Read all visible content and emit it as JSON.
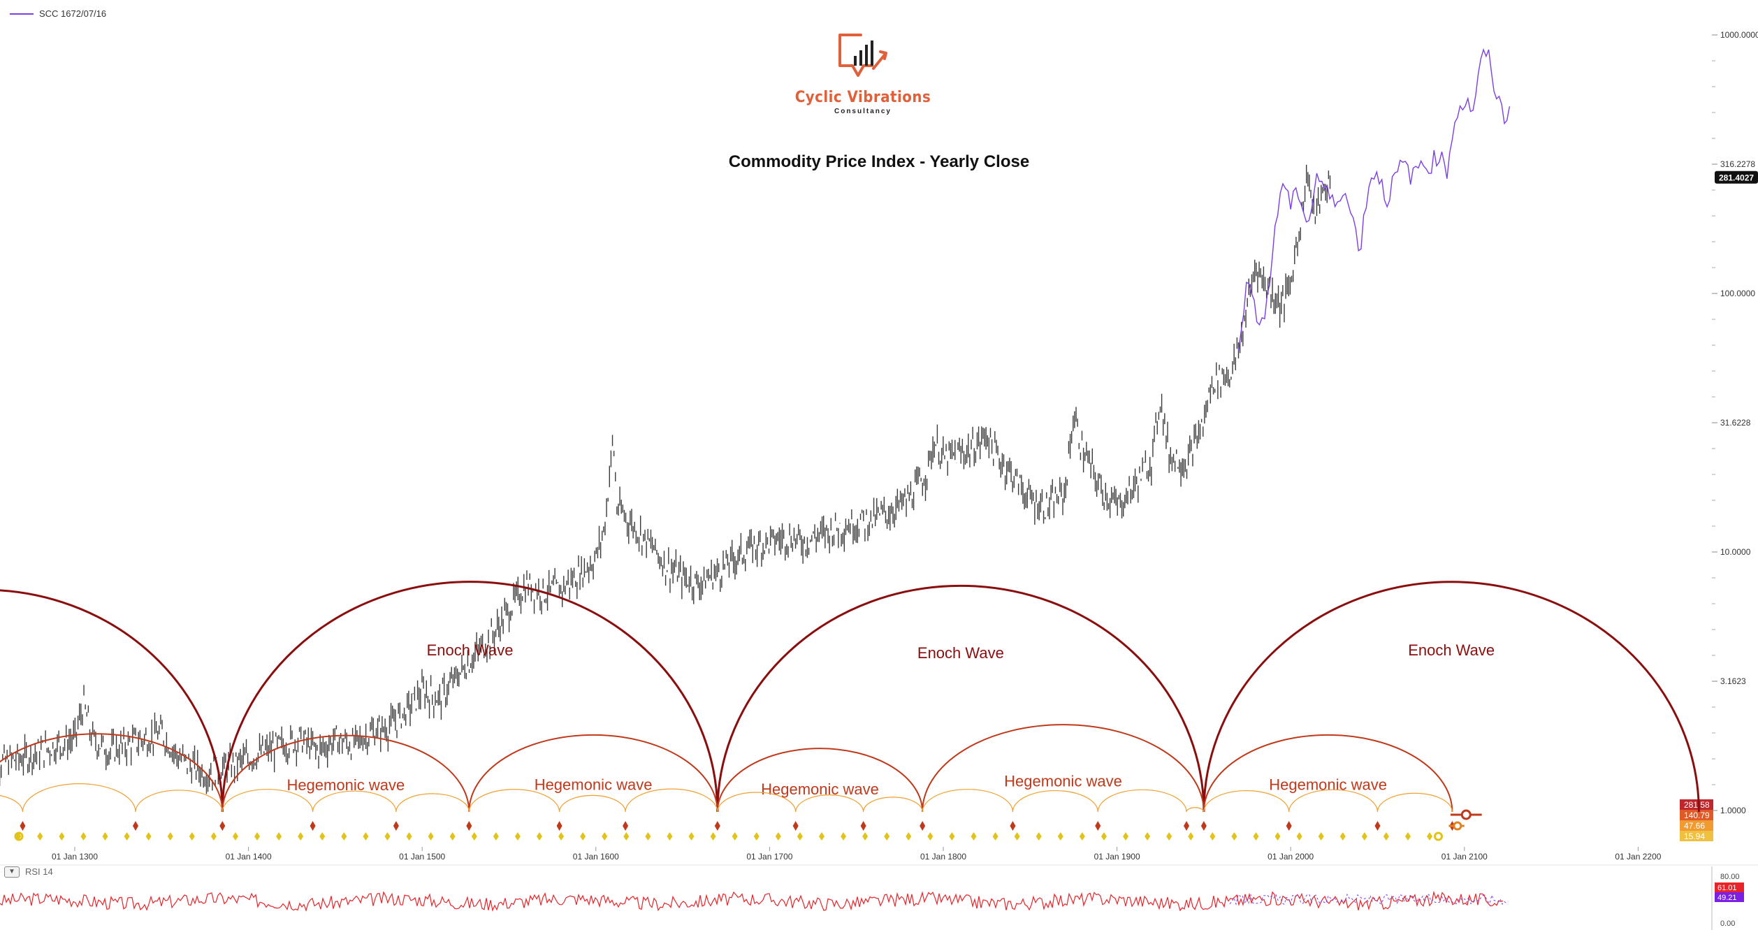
{
  "legend": {
    "symbol": "SCC 1672/07/16",
    "color": "#7b3fe4"
  },
  "logo": {
    "brand": "Cyclic Vibrations",
    "sub": "Consultancy"
  },
  "title": "Commodity Price Index - Yearly Close",
  "rsi": {
    "label": "RSI 14",
    "value_a": "61.01",
    "value_b": "49.21",
    "axis_ticks": [
      "80.00",
      "0.00"
    ]
  },
  "colors": {
    "enoch": "#8b0e0e",
    "hegemonic": "#c0391b",
    "minor": "#f0a030",
    "candles": "#3a3a3a",
    "overlay": "#7b3fe4",
    "rsi": "#e8242a",
    "diamond": "#e2c31a"
  },
  "chart_data": {
    "type": "line",
    "scale": "log",
    "ylim": [
      0.6,
      1000
    ],
    "x_ticks": [
      "01 Jan 1300",
      "01 Jan 1400",
      "01 Jan 1500",
      "01 Jan 1600",
      "01 Jan 1700",
      "01 Jan 1800",
      "01 Jan 1900",
      "01 Jan 2000",
      "01 Jan 2100",
      "01 Jan 2200"
    ],
    "x_tick_years": [
      1300,
      1400,
      1500,
      1600,
      1700,
      1800,
      1900,
      2000,
      2100,
      2200
    ],
    "y_ticks": [
      {
        "label": "1000.0000",
        "value": 1000
      },
      {
        "label": "316.2278",
        "value": 316.2278
      },
      {
        "label": "100.0000",
        "value": 100
      },
      {
        "label": "31.6228",
        "value": 31.6228
      },
      {
        "label": "10.0000",
        "value": 10
      },
      {
        "label": "3.1623",
        "value": 3.1623
      },
      {
        "label": "1.0000",
        "value": 1
      }
    ],
    "last_price": {
      "label": "281.4027",
      "value": 281.4027
    },
    "price_tags": [
      {
        "label": "281.58",
        "color": "#c0272d"
      },
      {
        "label": "140.79",
        "color": "#e05a28"
      },
      {
        "label": "47.66",
        "color": "#f09a30"
      },
      {
        "label": "15.94",
        "color": "#f0c040"
      }
    ],
    "series": [
      {
        "name": "",
        "points": [
          [
            1250,
            1.5
          ],
          [
            1270,
            1.6
          ],
          [
            1290,
            1.8
          ],
          [
            1300,
            1.9
          ],
          [
            1305,
            2.6
          ],
          [
            1310,
            1.9
          ],
          [
            1320,
            1.7
          ],
          [
            1330,
            1.8
          ],
          [
            1340,
            1.9
          ],
          [
            1350,
            2.0
          ],
          [
            1360,
            1.6
          ],
          [
            1375,
            1.4
          ],
          [
            1390,
            1.5
          ],
          [
            1400,
            1.6
          ],
          [
            1410,
            1.7
          ],
          [
            1420,
            1.8
          ],
          [
            1430,
            1.9
          ],
          [
            1440,
            1.7
          ],
          [
            1450,
            1.9
          ],
          [
            1460,
            1.8
          ],
          [
            1470,
            2.0
          ],
          [
            1480,
            2.1
          ],
          [
            1490,
            2.4
          ],
          [
            1500,
            2.9
          ],
          [
            1510,
            2.7
          ],
          [
            1520,
            3.3
          ],
          [
            1530,
            4.0
          ],
          [
            1540,
            4.7
          ],
          [
            1550,
            6.0
          ],
          [
            1560,
            7.5
          ],
          [
            1570,
            7.0
          ],
          [
            1580,
            7.2
          ],
          [
            1590,
            8.2
          ],
          [
            1600,
            9.5
          ],
          [
            1605,
            12.5
          ],
          [
            1610,
            28.0
          ],
          [
            1612,
            15.0
          ],
          [
            1620,
            13.0
          ],
          [
            1630,
            11.0
          ],
          [
            1640,
            9.0
          ],
          [
            1650,
            8.0
          ],
          [
            1660,
            7.6
          ],
          [
            1670,
            8.4
          ],
          [
            1680,
            9.5
          ],
          [
            1690,
            10.5
          ],
          [
            1700,
            11.0
          ],
          [
            1710,
            11.5
          ],
          [
            1720,
            11.0
          ],
          [
            1730,
            11.8
          ],
          [
            1740,
            12.5
          ],
          [
            1750,
            13.0
          ],
          [
            1760,
            13.5
          ],
          [
            1770,
            14.5
          ],
          [
            1780,
            16.0
          ],
          [
            1790,
            20.0
          ],
          [
            1795,
            27.0
          ],
          [
            1800,
            23.0
          ],
          [
            1810,
            24.0
          ],
          [
            1820,
            26.0
          ],
          [
            1825,
            29.0
          ],
          [
            1830,
            24.0
          ],
          [
            1840,
            20.0
          ],
          [
            1850,
            16.0
          ],
          [
            1860,
            15.0
          ],
          [
            1870,
            17.0
          ],
          [
            1875,
            34.0
          ],
          [
            1880,
            25.0
          ],
          [
            1890,
            18.0
          ],
          [
            1900,
            15.0
          ],
          [
            1910,
            18.0
          ],
          [
            1920,
            23.0
          ],
          [
            1925,
            40.0
          ],
          [
            1930,
            24.0
          ],
          [
            1940,
            22.0
          ],
          [
            1950,
            32.0
          ],
          [
            1955,
            46.0
          ],
          [
            1960,
            48.0
          ],
          [
            1965,
            49.0
          ],
          [
            1970,
            60.0
          ],
          [
            1975,
            90.0
          ],
          [
            1980,
            130.0
          ],
          [
            1985,
            110.0
          ],
          [
            1990,
            100.0
          ],
          [
            1995,
            90.0
          ],
          [
            2000,
            110.0
          ],
          [
            2005,
            180.0
          ],
          [
            2010,
            300.0
          ],
          [
            2013,
            200.0
          ],
          [
            2017,
            230.0
          ],
          [
            2023,
            281.0
          ]
        ]
      },
      {
        "name": "",
        "points": [
          [
            1970,
            65.0
          ],
          [
            1975,
            110.0
          ],
          [
            1980,
            85.0
          ],
          [
            1985,
            80.0
          ],
          [
            1990,
            150.0
          ],
          [
            1995,
            280.0
          ],
          [
            2000,
            220.0
          ],
          [
            2005,
            250.0
          ],
          [
            2010,
            180.0
          ],
          [
            2015,
            290.0
          ],
          [
            2020,
            250.0
          ],
          [
            2025,
            220.0
          ],
          [
            2030,
            260.0
          ],
          [
            2035,
            200.0
          ],
          [
            2040,
            150.0
          ],
          [
            2045,
            270.0
          ],
          [
            2050,
            300.0
          ],
          [
            2055,
            230.0
          ],
          [
            2060,
            280.0
          ],
          [
            2065,
            320.0
          ],
          [
            2070,
            280.0
          ],
          [
            2075,
            320.0
          ],
          [
            2080,
            310.0
          ],
          [
            2085,
            350.0
          ],
          [
            2090,
            300.0
          ],
          [
            2095,
            500.0
          ],
          [
            2100,
            550.0
          ],
          [
            2105,
            520.0
          ],
          [
            2110,
            800.0
          ],
          [
            2113,
            870.0
          ],
          [
            2118,
            600.0
          ],
          [
            2123,
            480.0
          ],
          [
            2126,
            520.0
          ]
        ]
      }
    ],
    "cycles": [
      {
        "label": "Enoch Wave",
        "label_year": "",
        "level": "enoch",
        "segments": [
          [
            1110,
            1385
          ],
          [
            1385,
            1670
          ],
          [
            1670,
            1950
          ],
          [
            1950,
            2235
          ]
        ],
        "labeled": [
          1,
          2,
          3
        ]
      },
      {
        "label": "Hegemonic wave",
        "level": "hegemonic",
        "segments": [
          [
            1240,
            1385
          ],
          [
            1385,
            1527
          ],
          [
            1527,
            1670
          ],
          [
            1670,
            1788
          ],
          [
            1788,
            1950
          ],
          [
            1950,
            2093
          ]
        ],
        "labeled": [
          1,
          2,
          3,
          4,
          5
        ]
      },
      {
        "label": "",
        "level": "minor",
        "segments": [
          [
            1230,
            1270
          ],
          [
            1270,
            1335
          ],
          [
            1335,
            1385
          ],
          [
            1385,
            1437
          ],
          [
            1437,
            1485
          ],
          [
            1485,
            1527
          ],
          [
            1527,
            1579
          ],
          [
            1579,
            1617
          ],
          [
            1617,
            1670
          ],
          [
            1670,
            1715
          ],
          [
            1715,
            1754
          ],
          [
            1754,
            1788
          ],
          [
            1788,
            1840
          ],
          [
            1840,
            1889
          ],
          [
            1889,
            1940
          ],
          [
            1940,
            1950
          ],
          [
            1950,
            1999
          ],
          [
            1999,
            2050
          ],
          [
            2050,
            2093
          ]
        ]
      }
    ],
    "rsi": {
      "name": "RSI 14",
      "ylim": [
        0,
        100
      ]
    }
  }
}
